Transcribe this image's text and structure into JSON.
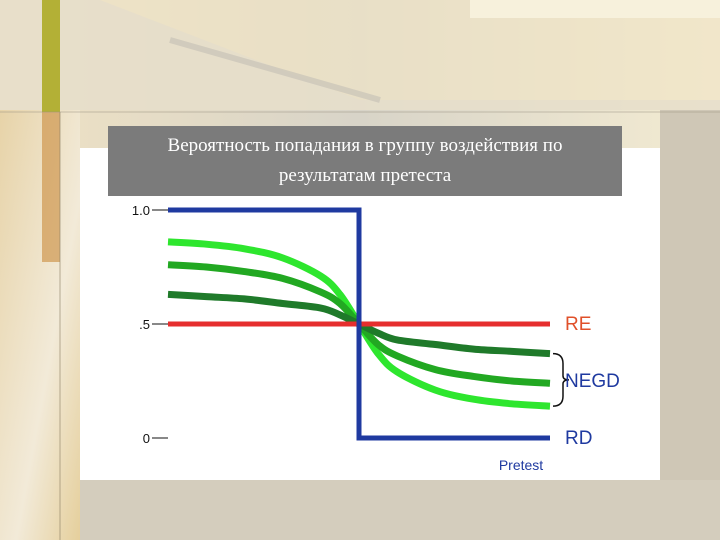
{
  "slide": {
    "title_line1": "Вероятность попадания в группу воздействия по",
    "title_line2": "результатам претеста"
  },
  "colors": {
    "background": "#d9d4c6",
    "accent_bar": "#b3b036",
    "rd": "#1f3aa0",
    "re": "#e62e2e",
    "negd_light": "#2ee62e",
    "negd_mid": "#22a822",
    "negd_dark": "#1f7a2a",
    "label_re": "#e0502a"
  },
  "chart_data": {
    "type": "line",
    "title": "",
    "xlabel": "Pretest",
    "ylabel": "",
    "xlim": [
      0,
      1
    ],
    "ylim": [
      0,
      1
    ],
    "cutoff": 0.5,
    "y_ticks": [
      {
        "value": 1.0,
        "label": "1.0"
      },
      {
        "value": 0.5,
        "label": ".5"
      },
      {
        "value": 0.0,
        "label": "0"
      }
    ],
    "series": [
      {
        "name": "RD",
        "color": "#1f3aa0",
        "x": [
          0,
          0.5,
          0.5,
          1
        ],
        "y": [
          1,
          1,
          0,
          0
        ]
      },
      {
        "name": "RE",
        "color": "#e62e2e",
        "x": [
          0,
          1
        ],
        "y": [
          0.5,
          0.5
        ]
      },
      {
        "name": "NEGD",
        "color": "#2ee62e",
        "x": [
          0,
          0.1,
          0.2,
          0.3,
          0.4,
          0.45,
          0.5,
          0.55,
          0.6,
          0.7,
          0.8,
          0.9,
          1.0
        ],
        "y": [
          0.86,
          0.85,
          0.83,
          0.79,
          0.71,
          0.63,
          0.5,
          0.37,
          0.29,
          0.21,
          0.17,
          0.15,
          0.14
        ]
      },
      {
        "name": "NEGD",
        "color": "#22a822",
        "x": [
          0,
          0.1,
          0.2,
          0.3,
          0.4,
          0.45,
          0.5,
          0.55,
          0.6,
          0.7,
          0.8,
          0.9,
          1.0
        ],
        "y": [
          0.76,
          0.75,
          0.73,
          0.7,
          0.64,
          0.59,
          0.5,
          0.41,
          0.36,
          0.3,
          0.27,
          0.25,
          0.24
        ]
      },
      {
        "name": "NEGD",
        "color": "#1f7a2a",
        "x": [
          0,
          0.1,
          0.2,
          0.3,
          0.4,
          0.45,
          0.5,
          0.55,
          0.6,
          0.7,
          0.8,
          0.9,
          1.0
        ],
        "y": [
          0.63,
          0.62,
          0.61,
          0.59,
          0.57,
          0.54,
          0.5,
          0.46,
          0.43,
          0.41,
          0.39,
          0.38,
          0.37
        ]
      }
    ],
    "labels": [
      {
        "text": "RE",
        "series": "RE"
      },
      {
        "text": "NEGD",
        "series": "NEGD"
      },
      {
        "text": "RD",
        "series": "RD"
      }
    ]
  }
}
